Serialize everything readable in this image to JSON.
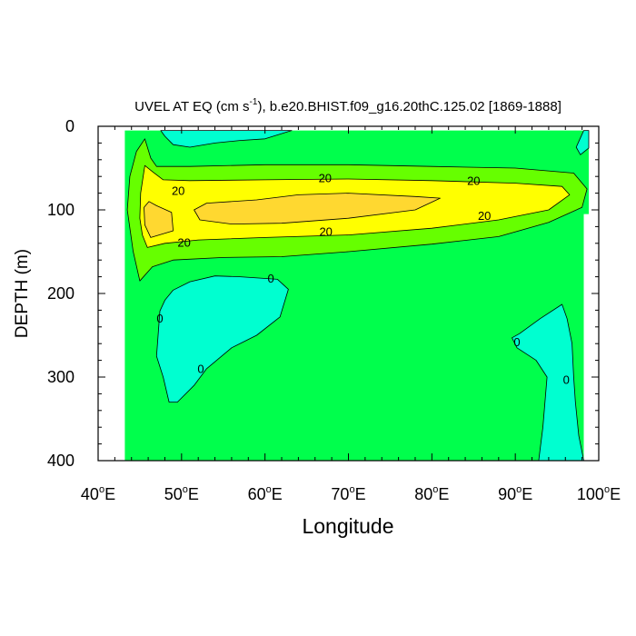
{
  "chart_data": {
    "type": "contour",
    "title": {
      "prefix": "UVEL AT EQ (cm s",
      "superscript": "-1",
      "suffix": "), b.e20.BHIST.f09_g16.20thC.125.02 [1869-1888]"
    },
    "xlabel": "Longitude",
    "ylabel": "DEPTH (m)",
    "xlim": [
      40,
      100
    ],
    "ylim": [
      0,
      400
    ],
    "y_inverted": true,
    "x_ticks": [
      {
        "value": 40,
        "num": "40",
        "unit": "E"
      },
      {
        "value": 50,
        "num": "50",
        "unit": "E"
      },
      {
        "value": 60,
        "num": "60",
        "unit": "E"
      },
      {
        "value": 70,
        "num": "70",
        "unit": "E"
      },
      {
        "value": 80,
        "num": "80",
        "unit": "E"
      },
      {
        "value": 90,
        "num": "90",
        "unit": "E"
      },
      {
        "value": 100,
        "num": "100",
        "unit": "E"
      }
    ],
    "y_ticks": [
      {
        "value": 0,
        "label": "0"
      },
      {
        "value": 100,
        "label": "100"
      },
      {
        "value": 200,
        "label": "200"
      },
      {
        "value": 300,
        "label": "300"
      },
      {
        "value": 400,
        "label": "400"
      }
    ],
    "colors": {
      "negative": "#00ffd0",
      "level_0_10": "#00ff4c",
      "level_10_20": "#66ff00",
      "level_20_30": "#ffff00",
      "level_30_plus": "#ffd830"
    },
    "regions": [
      {
        "name": "ocean-domain",
        "level": "level_0_10",
        "points": [
          [
            43.2,
            5
          ],
          [
            98.8,
            5
          ],
          [
            98.8,
            105
          ],
          [
            98.2,
            105
          ],
          [
            98.2,
            400
          ],
          [
            43.2,
            400
          ]
        ]
      },
      {
        "name": "jet-10-band",
        "level": "level_10_20",
        "points": [
          [
            44.2,
            150
          ],
          [
            45.0,
            185
          ],
          [
            46.5,
            168
          ],
          [
            49,
            160
          ],
          [
            55,
            157
          ],
          [
            62,
            156
          ],
          [
            70,
            150
          ],
          [
            80,
            141
          ],
          [
            88,
            132
          ],
          [
            94,
            115
          ],
          [
            98,
            97
          ],
          [
            98.6,
            75
          ],
          [
            97,
            56
          ],
          [
            90,
            50
          ],
          [
            80,
            48
          ],
          [
            70,
            46
          ],
          [
            60,
            46
          ],
          [
            51,
            48
          ],
          [
            47,
            48
          ],
          [
            46.3,
            38
          ],
          [
            45.6,
            15
          ],
          [
            44.6,
            30
          ],
          [
            43.8,
            60
          ],
          [
            43.5,
            100
          ]
        ]
      },
      {
        "name": "jet-20-band",
        "level": "level_20_30",
        "points": [
          [
            45.3,
            130
          ],
          [
            45.9,
            145
          ],
          [
            48,
            140
          ],
          [
            52,
            136
          ],
          [
            60,
            133
          ],
          [
            70,
            130
          ],
          [
            80,
            122
          ],
          [
            88,
            112
          ],
          [
            94,
            100
          ],
          [
            96.5,
            82
          ],
          [
            95.6,
            72
          ],
          [
            90,
            68
          ],
          [
            80,
            65
          ],
          [
            70,
            63
          ],
          [
            60,
            64
          ],
          [
            51,
            65
          ],
          [
            47.8,
            64
          ],
          [
            46.6,
            55
          ],
          [
            45.6,
            47
          ],
          [
            45.1,
            80
          ],
          [
            45.0,
            110
          ]
        ]
      },
      {
        "name": "jet-core-east",
        "level": "level_30_plus",
        "points": [
          [
            51.5,
            100
          ],
          [
            52.2,
            112
          ],
          [
            56,
            117
          ],
          [
            62,
            116
          ],
          [
            70,
            110
          ],
          [
            78,
            100
          ],
          [
            81,
            86
          ],
          [
            78,
            84
          ],
          [
            70,
            80
          ],
          [
            64,
            82
          ],
          [
            59,
            88
          ],
          [
            53,
            92
          ]
        ]
      },
      {
        "name": "jet-core-west",
        "level": "level_30_plus",
        "points": [
          [
            45.5,
            97
          ],
          [
            45.6,
            118
          ],
          [
            46.3,
            133
          ],
          [
            49,
            125
          ],
          [
            48.8,
            103
          ],
          [
            47,
            95
          ],
          [
            46.1,
            90
          ]
        ]
      },
      {
        "name": "negative-top-left",
        "level": "negative",
        "points": [
          [
            47.5,
            5
          ],
          [
            48.0,
            12
          ],
          [
            49,
            22
          ],
          [
            51,
            25
          ],
          [
            54,
            20
          ],
          [
            57,
            17
          ],
          [
            60,
            15
          ],
          [
            63.2,
            5
          ]
        ]
      },
      {
        "name": "negative-top-right",
        "level": "negative",
        "points": [
          [
            98.2,
            5
          ],
          [
            98.8,
            5
          ],
          [
            98.8,
            26
          ],
          [
            97.8,
            34
          ],
          [
            97.3,
            25
          ]
        ]
      },
      {
        "name": "negative-mid-left",
        "level": "negative",
        "points": [
          [
            47.4,
            221
          ],
          [
            47.0,
            275
          ],
          [
            47.8,
            300
          ],
          [
            48.5,
            330
          ],
          [
            49.5,
            330
          ],
          [
            51.5,
            310
          ],
          [
            53,
            290
          ],
          [
            56,
            265
          ],
          [
            59,
            250
          ],
          [
            61.8,
            228
          ],
          [
            62.8,
            195
          ],
          [
            61.5,
            183
          ],
          [
            57,
            180
          ],
          [
            54,
            179
          ],
          [
            51,
            186
          ],
          [
            49,
            196
          ],
          [
            48,
            208
          ]
        ]
      },
      {
        "name": "negative-lower-right",
        "level": "negative",
        "points": [
          [
            89.6,
            253
          ],
          [
            90.2,
            265
          ],
          [
            92.5,
            280
          ],
          [
            93.8,
            300
          ],
          [
            93.3,
            360
          ],
          [
            92.8,
            400
          ],
          [
            98.2,
            400
          ],
          [
            97.6,
            370
          ],
          [
            97.2,
            330
          ],
          [
            97.0,
            300
          ],
          [
            96.8,
            260
          ],
          [
            96.2,
            230
          ],
          [
            95.6,
            213
          ],
          [
            93,
            230
          ],
          [
            90.5,
            248
          ]
        ]
      }
    ],
    "contour_labels": [
      {
        "text": "20",
        "x": 49.6,
        "y": 77
      },
      {
        "text": "20",
        "x": 67.2,
        "y": 62
      },
      {
        "text": "20",
        "x": 85.0,
        "y": 65
      },
      {
        "text": "20",
        "x": 50.3,
        "y": 139
      },
      {
        "text": "20",
        "x": 67.3,
        "y": 126
      },
      {
        "text": "20",
        "x": 86.3,
        "y": 107
      },
      {
        "text": "0",
        "x": 60.7,
        "y": 182
      },
      {
        "text": "0",
        "x": 47.4,
        "y": 230
      },
      {
        "text": "0",
        "x": 52.3,
        "y": 290
      },
      {
        "text": "0",
        "x": 90.2,
        "y": 258
      },
      {
        "text": "0",
        "x": 96.1,
        "y": 303
      }
    ]
  }
}
